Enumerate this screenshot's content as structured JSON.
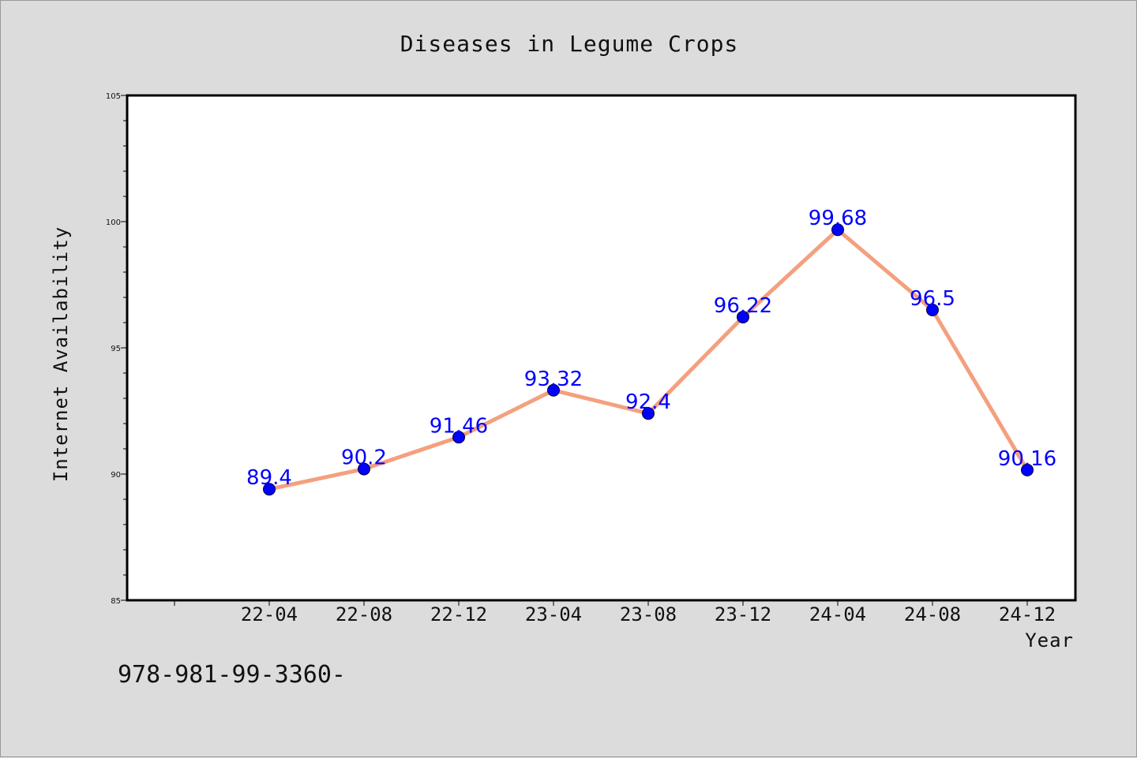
{
  "colors": {
    "background": "#dcdcdc",
    "plot_background": "#ffffff",
    "line": "#f4a07e",
    "marker": "#0000ff",
    "data_label": "#0000ff"
  },
  "footer": {
    "text": "978-981-99-3360-"
  },
  "chart_data": {
    "type": "line",
    "title": "Diseases in Legume Crops",
    "xlabel": "Year",
    "ylabel": "Internet Availability",
    "categories": [
      "22-04",
      "22-08",
      "22-12",
      "23-04",
      "23-08",
      "23-12",
      "24-04",
      "24-08",
      "24-12"
    ],
    "series": [
      {
        "values": [
          89.4,
          90.2,
          91.46,
          93.32,
          92.4,
          96.22,
          99.68,
          96.5,
          90.16
        ]
      }
    ],
    "data_labels": [
      "89.4",
      "90.2",
      "91.46",
      "93.32",
      "92.4",
      "96.22",
      "99.68",
      "96.5",
      "90.16"
    ],
    "ylim": [
      85,
      105
    ],
    "yticks": [
      85,
      90,
      95,
      100,
      105
    ],
    "grid": false,
    "legend": "none"
  }
}
